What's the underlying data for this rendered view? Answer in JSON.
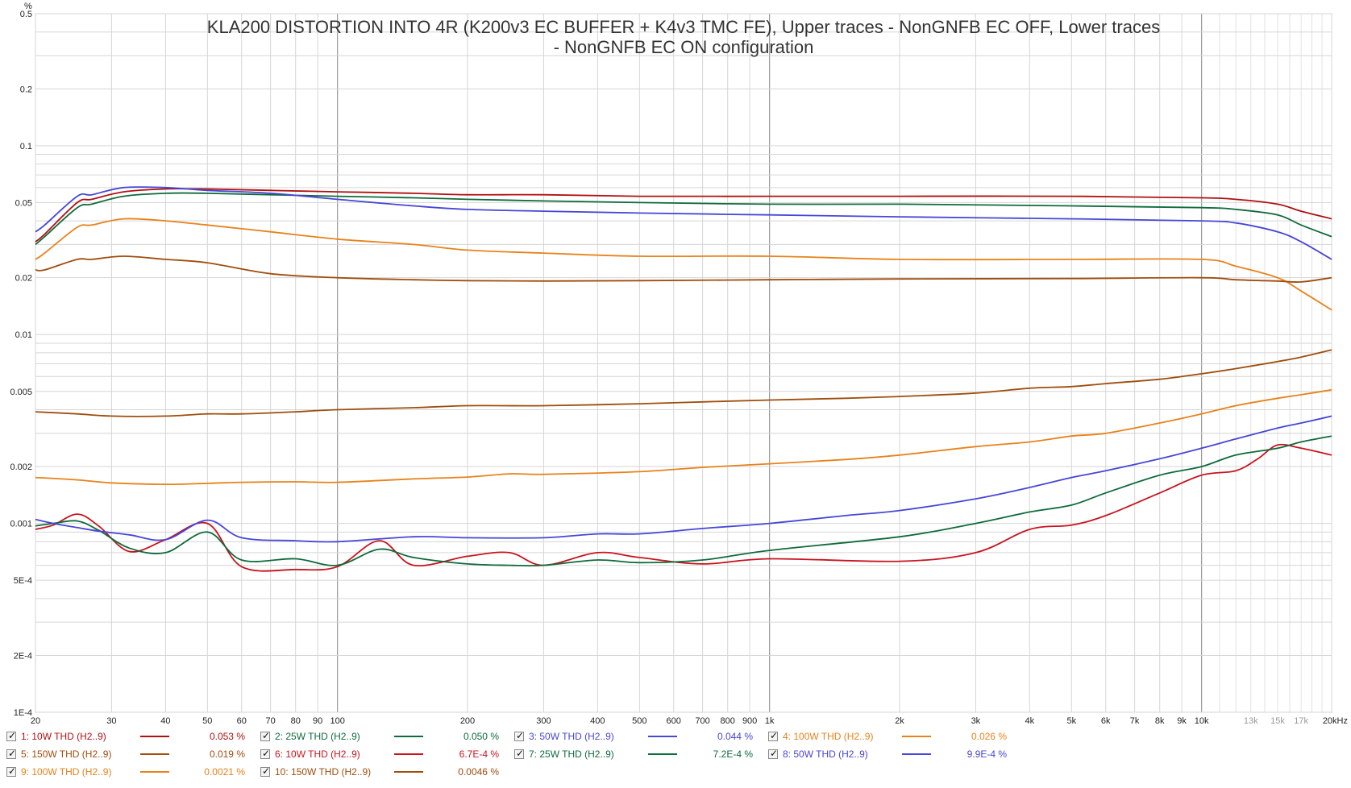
{
  "chart_data": {
    "type": "line",
    "title_line1": "KLA200 DISTORTION INTO 4R (K200v3 EC BUFFER + K4v3 TMC FE), Upper traces - NonGNFB EC OFF, Lower traces",
    "title_line2": "- NonGNFB EC ON configuration",
    "yunit": "%",
    "xscale": "log",
    "yscale": "log",
    "xlim": [
      20,
      20000
    ],
    "ylim": [
      0.0001,
      0.5
    ],
    "grid": true,
    "legend_position": "bottom",
    "x_ticks": [
      {
        "v": 20,
        "label": "20",
        "minor": false
      },
      {
        "v": 30,
        "label": "30",
        "minor": false
      },
      {
        "v": 40,
        "label": "40",
        "minor": false
      },
      {
        "v": 50,
        "label": "50",
        "minor": false
      },
      {
        "v": 60,
        "label": "60",
        "minor": false
      },
      {
        "v": 70,
        "label": "70",
        "minor": false
      },
      {
        "v": 80,
        "label": "80",
        "minor": false
      },
      {
        "v": 90,
        "label": "90",
        "minor": false
      },
      {
        "v": 100,
        "label": "100",
        "minor": false
      },
      {
        "v": 200,
        "label": "200",
        "minor": false
      },
      {
        "v": 300,
        "label": "300",
        "minor": false
      },
      {
        "v": 400,
        "label": "400",
        "minor": false
      },
      {
        "v": 500,
        "label": "500",
        "minor": false
      },
      {
        "v": 600,
        "label": "600",
        "minor": false
      },
      {
        "v": 700,
        "label": "700",
        "minor": false
      },
      {
        "v": 800,
        "label": "800",
        "minor": false
      },
      {
        "v": 900,
        "label": "900",
        "minor": false
      },
      {
        "v": 1000,
        "label": "1k",
        "minor": false
      },
      {
        "v": 2000,
        "label": "2k",
        "minor": false
      },
      {
        "v": 3000,
        "label": "3k",
        "minor": false
      },
      {
        "v": 4000,
        "label": "4k",
        "minor": false
      },
      {
        "v": 5000,
        "label": "5k",
        "minor": false
      },
      {
        "v": 6000,
        "label": "6k",
        "minor": false
      },
      {
        "v": 7000,
        "label": "7k",
        "minor": false
      },
      {
        "v": 8000,
        "label": "8k",
        "minor": false
      },
      {
        "v": 9000,
        "label": "9k",
        "minor": false
      },
      {
        "v": 10000,
        "label": "10k",
        "minor": false
      },
      {
        "v": 13000,
        "label": "13k",
        "minor": true
      },
      {
        "v": 15000,
        "label": "15k",
        "minor": true
      },
      {
        "v": 17000,
        "label": "17k",
        "minor": true
      },
      {
        "v": 20000,
        "label": "20kHz",
        "minor": false
      }
    ],
    "y_ticks": [
      {
        "v": 0.5,
        "label": "0.5"
      },
      {
        "v": 0.2,
        "label": "0.2"
      },
      {
        "v": 0.1,
        "label": "0.1"
      },
      {
        "v": 0.05,
        "label": "0.05"
      },
      {
        "v": 0.02,
        "label": "0.02"
      },
      {
        "v": 0.01,
        "label": "0.01"
      },
      {
        "v": 0.005,
        "label": "0.005"
      },
      {
        "v": 0.002,
        "label": "0.002"
      },
      {
        "v": 0.001,
        "label": "0.001"
      },
      {
        "v": 0.0005,
        "label": "5E-4"
      },
      {
        "v": 0.0002,
        "label": "2E-4"
      },
      {
        "v": 0.0001,
        "label": "1E-4"
      }
    ],
    "series": [
      {
        "name": "1: 10W THD (H2..9)",
        "value": "0.053 %",
        "color": "#b01010",
        "x": [
          20,
          21,
          25,
          27,
          32,
          40,
          50,
          70,
          100,
          150,
          200,
          300,
          500,
          1000,
          2000,
          5000,
          10000,
          12000,
          15000,
          17000,
          20000
        ],
        "y": [
          0.031,
          0.034,
          0.05,
          0.052,
          0.057,
          0.059,
          0.059,
          0.058,
          0.057,
          0.056,
          0.055,
          0.055,
          0.054,
          0.054,
          0.054,
          0.054,
          0.053,
          0.052,
          0.049,
          0.045,
          0.041
        ]
      },
      {
        "name": "2: 25W THD (H2..9)",
        "value": "0.050 %",
        "color": "#0e6b3c",
        "x": [
          20,
          21,
          25,
          27,
          32,
          40,
          50,
          70,
          100,
          150,
          200,
          300,
          500,
          1000,
          2000,
          5000,
          10000,
          12000,
          15000,
          17000,
          20000
        ],
        "y": [
          0.03,
          0.033,
          0.047,
          0.049,
          0.054,
          0.056,
          0.056,
          0.055,
          0.054,
          0.053,
          0.052,
          0.051,
          0.05,
          0.049,
          0.049,
          0.048,
          0.047,
          0.046,
          0.043,
          0.038,
          0.033
        ]
      },
      {
        "name": "3: 50W THD (H2..9)",
        "value": "0.044 %",
        "color": "#4646d8",
        "x": [
          20,
          21,
          25,
          27,
          32,
          40,
          50,
          70,
          100,
          150,
          200,
          300,
          500,
          1000,
          2000,
          5000,
          10000,
          12000,
          15000,
          17000,
          20000
        ],
        "y": [
          0.035,
          0.038,
          0.054,
          0.055,
          0.06,
          0.06,
          0.058,
          0.056,
          0.052,
          0.048,
          0.046,
          0.045,
          0.044,
          0.043,
          0.042,
          0.041,
          0.04,
          0.039,
          0.035,
          0.031,
          0.025
        ]
      },
      {
        "name": "4: 100W THD (H2..9)",
        "value": "0.026 %",
        "color": "#e8821a",
        "x": [
          20,
          21,
          25,
          27,
          32,
          40,
          50,
          70,
          100,
          150,
          200,
          300,
          500,
          1000,
          2000,
          5000,
          10000,
          12000,
          15000,
          17000,
          20000
        ],
        "y": [
          0.025,
          0.027,
          0.037,
          0.038,
          0.041,
          0.04,
          0.038,
          0.035,
          0.032,
          0.03,
          0.028,
          0.027,
          0.026,
          0.026,
          0.025,
          0.025,
          0.025,
          0.023,
          0.02,
          0.017,
          0.0135
        ]
      },
      {
        "name": "5: 150W THD (H2..9)",
        "value": "0.019 %",
        "color": "#a04d0c",
        "x": [
          20,
          21,
          25,
          27,
          32,
          40,
          50,
          70,
          100,
          150,
          200,
          300,
          500,
          1000,
          2000,
          5000,
          10000,
          12000,
          15000,
          17000,
          20000
        ],
        "y": [
          0.022,
          0.022,
          0.025,
          0.025,
          0.026,
          0.025,
          0.024,
          0.021,
          0.02,
          0.0195,
          0.0193,
          0.0192,
          0.0193,
          0.0195,
          0.0197,
          0.0198,
          0.02,
          0.0195,
          0.0192,
          0.019,
          0.02
        ]
      },
      {
        "name": "6: 10W THD (H2..9)",
        "value": "6.7E-4 %",
        "color": "#c8141e",
        "x": [
          20,
          22,
          25,
          28,
          33,
          40,
          50,
          60,
          80,
          100,
          125,
          150,
          200,
          250,
          300,
          400,
          500,
          700,
          1000,
          2000,
          3000,
          4000,
          5000,
          6000,
          8000,
          10000,
          12000,
          13500,
          15000,
          17000,
          20000
        ],
        "y": [
          0.00093,
          0.00098,
          0.00112,
          0.00097,
          0.00071,
          0.00082,
          0.001,
          0.00059,
          0.00057,
          0.00059,
          0.00081,
          0.0006,
          0.00067,
          0.0007,
          0.0006,
          0.0007,
          0.00066,
          0.00061,
          0.00065,
          0.00063,
          0.0007,
          0.00093,
          0.00098,
          0.0011,
          0.00145,
          0.0018,
          0.0019,
          0.0022,
          0.0026,
          0.0025,
          0.0023
        ]
      },
      {
        "name": "7: 25W THD (H2..9)",
        "value": "7.2E-4 %",
        "color": "#0e6b3c",
        "x": [
          20,
          22,
          25,
          28,
          33,
          40,
          50,
          60,
          80,
          100,
          125,
          150,
          200,
          250,
          300,
          400,
          500,
          700,
          1000,
          2000,
          3000,
          4000,
          5000,
          6000,
          8000,
          10000,
          12000,
          15000,
          17000,
          20000
        ],
        "y": [
          0.00097,
          0.001,
          0.00103,
          0.00092,
          0.00074,
          0.0007,
          0.0009,
          0.00064,
          0.00065,
          0.0006,
          0.00073,
          0.00066,
          0.00061,
          0.0006,
          0.0006,
          0.00064,
          0.00062,
          0.00064,
          0.00072,
          0.00085,
          0.001,
          0.00115,
          0.00125,
          0.00145,
          0.0018,
          0.002,
          0.0023,
          0.0025,
          0.0027,
          0.0029
        ]
      },
      {
        "name": "8: 50W THD (H2..9)",
        "value": "9.9E-4 %",
        "color": "#4646d8",
        "x": [
          20,
          22,
          25,
          28,
          33,
          40,
          50,
          60,
          80,
          100,
          150,
          200,
          300,
          400,
          500,
          700,
          1000,
          1500,
          2000,
          3000,
          4000,
          5000,
          6000,
          8000,
          10000,
          12000,
          15000,
          17000,
          20000
        ],
        "y": [
          0.00105,
          0.001,
          0.00095,
          0.00091,
          0.00087,
          0.00082,
          0.00104,
          0.00084,
          0.00081,
          0.0008,
          0.00085,
          0.00084,
          0.00084,
          0.00088,
          0.00088,
          0.00094,
          0.001,
          0.0011,
          0.00117,
          0.00135,
          0.00155,
          0.00175,
          0.0019,
          0.0022,
          0.0025,
          0.0028,
          0.0032,
          0.0034,
          0.0037
        ]
      },
      {
        "name": "9: 100W THD (H2..9)",
        "value": "0.0021 %",
        "color": "#e8821a",
        "x": [
          20,
          25,
          30,
          40,
          50,
          60,
          80,
          100,
          150,
          200,
          250,
          300,
          500,
          700,
          1000,
          1500,
          2000,
          3000,
          4000,
          5000,
          6000,
          8000,
          10000,
          12000,
          15000,
          17000,
          20000
        ],
        "y": [
          0.00175,
          0.0017,
          0.00164,
          0.00161,
          0.00163,
          0.00165,
          0.00166,
          0.00165,
          0.00172,
          0.00176,
          0.00183,
          0.00182,
          0.00188,
          0.00198,
          0.00207,
          0.00218,
          0.0023,
          0.00255,
          0.0027,
          0.0029,
          0.003,
          0.0034,
          0.0038,
          0.0042,
          0.0046,
          0.0048,
          0.0051
        ]
      },
      {
        "name": "10: 150W THD (H2..9)",
        "value": "0.0046 %",
        "color": "#a04d0c",
        "x": [
          20,
          25,
          30,
          40,
          50,
          60,
          80,
          100,
          150,
          200,
          300,
          500,
          700,
          1000,
          1500,
          2000,
          3000,
          4000,
          5000,
          6000,
          8000,
          10000,
          12000,
          15000,
          17000,
          20000
        ],
        "y": [
          0.0039,
          0.0038,
          0.0037,
          0.0037,
          0.0038,
          0.0038,
          0.0039,
          0.004,
          0.0041,
          0.0042,
          0.0042,
          0.0043,
          0.0044,
          0.0045,
          0.0046,
          0.0047,
          0.0049,
          0.0052,
          0.0053,
          0.0055,
          0.0058,
          0.0062,
          0.0066,
          0.0072,
          0.0076,
          0.0083
        ]
      }
    ]
  },
  "legend": {
    "rows": [
      [
        0,
        1,
        2,
        3
      ],
      [
        4,
        5,
        6,
        7
      ],
      [
        8,
        9
      ]
    ]
  }
}
